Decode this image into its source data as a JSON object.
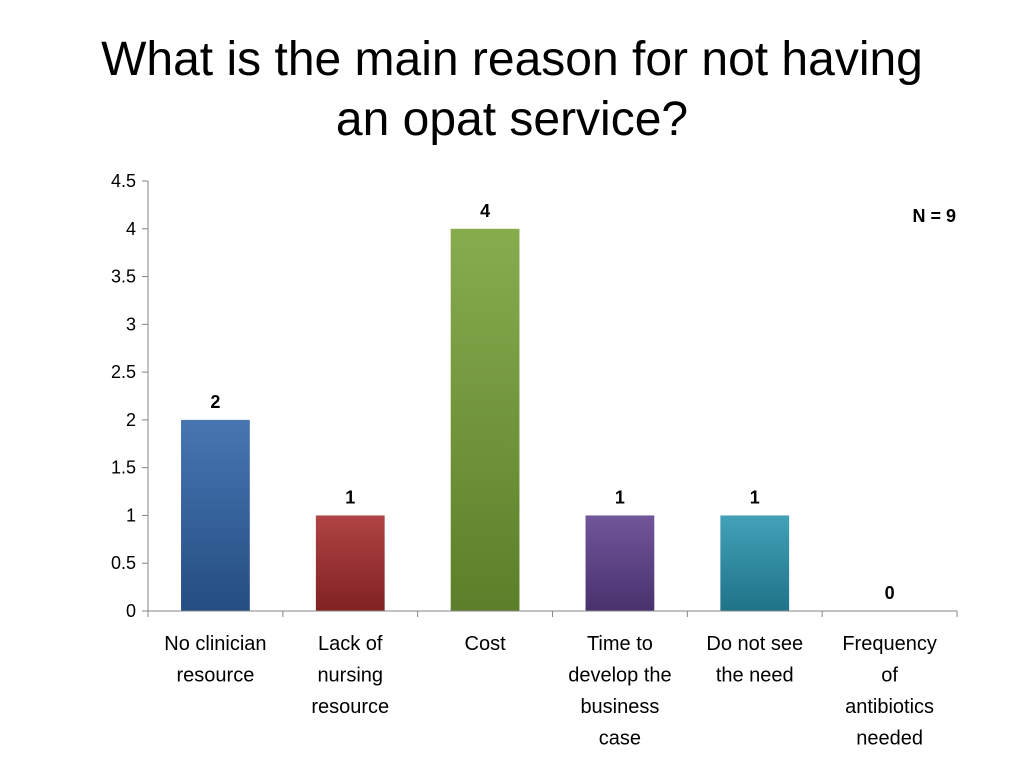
{
  "slide": {
    "title_line1": "What is the main reason for not having",
    "title_line2": "an opat service?"
  },
  "chart_data": {
    "type": "bar",
    "title": "",
    "xlabel": "",
    "ylabel": "",
    "ylim": [
      0,
      4.5
    ],
    "y_ticks": [
      "0",
      "0.5",
      "1",
      "1.5",
      "2",
      "2.5",
      "3",
      "3.5",
      "4",
      "4.5"
    ],
    "grid": false,
    "categories": [
      [
        "No clinician",
        "resource"
      ],
      [
        "Lack of",
        "nursing",
        "resource"
      ],
      [
        "Cost"
      ],
      [
        "Time to",
        "develop the",
        "business",
        "case"
      ],
      [
        "Do not see",
        "the need"
      ],
      [
        "Frequency",
        "of",
        "antibiotics",
        "needed"
      ]
    ],
    "values": [
      2,
      1,
      4,
      1,
      1,
      0
    ],
    "bar_colors": [
      "#2E63A8",
      "#A52A2A",
      "#77A136",
      "#5E3F8C",
      "#2894AE",
      "#4F81BD"
    ],
    "annotation": "N = 9"
  }
}
